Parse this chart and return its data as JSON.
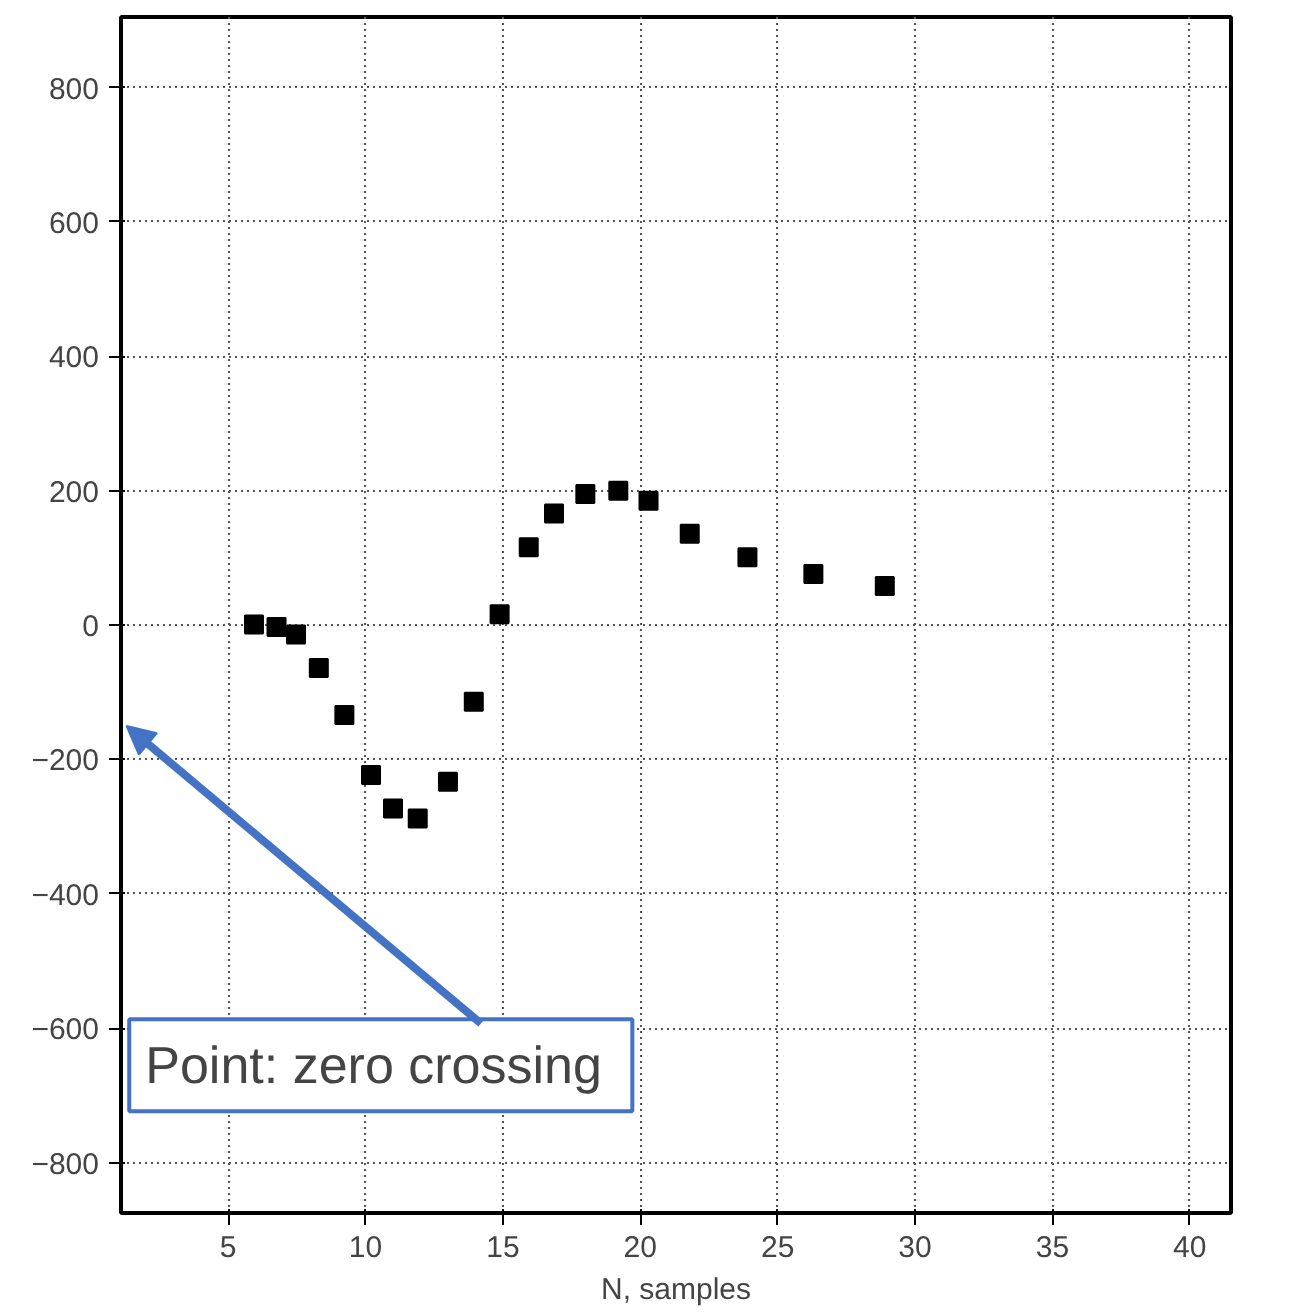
{
  "chart_data": {
    "type": "scatter",
    "xlabel": "N, samples",
    "x": [
      5.94,
      6.76,
      7.47,
      8.3,
      9.23,
      10.2,
      11.0,
      11.9,
      13.0,
      13.94,
      14.88,
      15.94,
      16.86,
      18.0,
      19.2,
      20.3,
      21.8,
      23.9,
      26.3,
      28.9
    ],
    "series": [
      {
        "color": "#000000",
        "values": [
          1,
          -3,
          -14,
          -64,
          -134,
          -223,
          -273,
          -288,
          -233,
          -114,
          16,
          116,
          166,
          195,
          200,
          185,
          136,
          101,
          76,
          58
        ]
      }
    ],
    "xlim": [
      1.1,
      41.5
    ],
    "ylim": [
      -875,
      905
    ],
    "xticks": [
      5,
      10,
      15,
      20,
      25,
      30,
      35,
      40
    ],
    "yticks": [
      -800,
      -600,
      -400,
      -200,
      0,
      200,
      400,
      600,
      800
    ],
    "grid": true,
    "marker": "square",
    "annotations": [
      "Point:  zero crossing"
    ]
  }
}
